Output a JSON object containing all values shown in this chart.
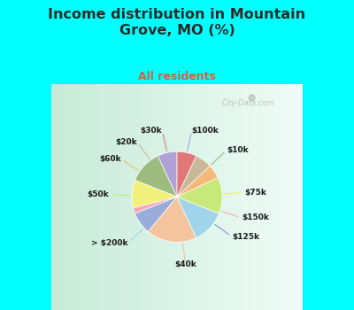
{
  "title": "Income distribution in Mountain\nGrove, MO (%)",
  "subtitle": "All residents",
  "title_color": "#2a2a2a",
  "subtitle_color": "#cc6644",
  "bg_cyan": "#00FFFF",
  "bg_chart_gradient_start": "#c8ede0",
  "bg_chart_gradient_end": "#e8f8f0",
  "labels": [
    "$100k",
    "$10k",
    "$75k",
    "$150k",
    "$125k",
    "$40k",
    "> $200k",
    "$50k",
    "$60k",
    "$20k",
    "$30k"
  ],
  "values": [
    7,
    12,
    10,
    2,
    8,
    18,
    12,
    13,
    5,
    6,
    7
  ],
  "colors": [
    "#b0a0d8",
    "#9dbc80",
    "#f0f07a",
    "#f4a8b8",
    "#9aadda",
    "#f4c49f",
    "#a0d4e8",
    "#c8e87a",
    "#f4b878",
    "#c8b898",
    "#e07878"
  ],
  "connector_colors": [
    "#b0a0d8",
    "#9dbc80",
    "#f0f070",
    "#f4a8b8",
    "#8898c8",
    "#f4c49f",
    "#a0d4e8",
    "#c8e870",
    "#f4b870",
    "#c8b898",
    "#e07878"
  ],
  "startangle": 90,
  "figsize": [
    4.0,
    3.5
  ],
  "dpi": 100,
  "watermark": "City-Data.com"
}
